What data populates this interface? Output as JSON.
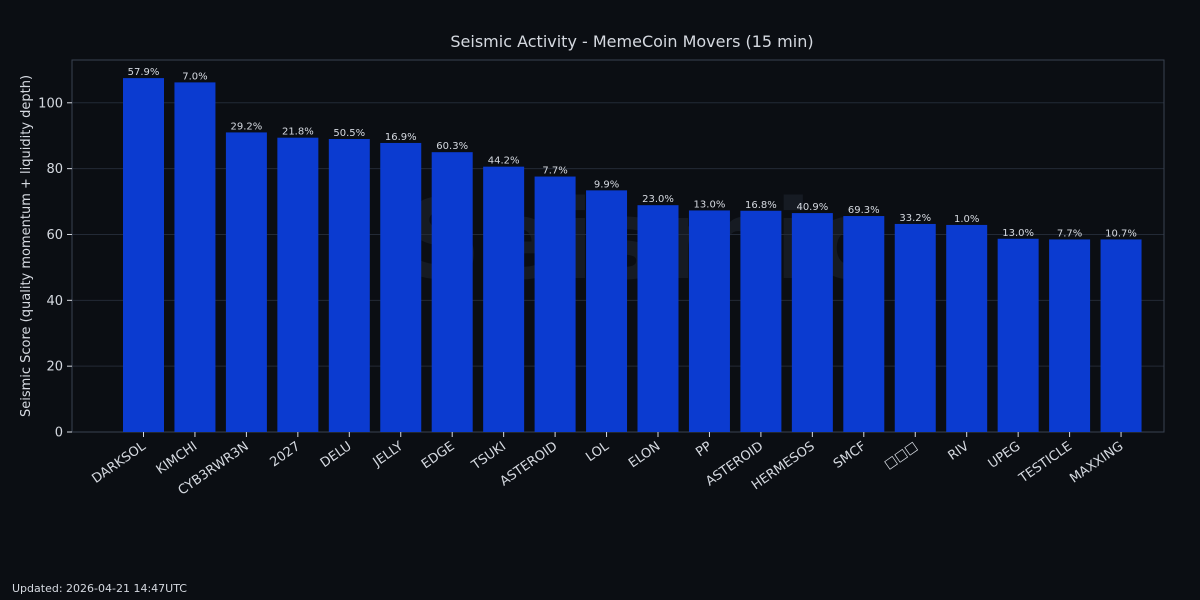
{
  "chart_data": {
    "type": "bar",
    "title": "Seismic Activity - MemeCoin Movers (15 min)",
    "xlabel": "",
    "ylabel": "Seismic Score (quality momentum + liquidity depth)",
    "ylim": [
      0,
      113
    ],
    "yticks": [
      0,
      20,
      40,
      60,
      80,
      100
    ],
    "grid": true,
    "watermark": "Seismic",
    "categories": [
      "DARKSOL",
      "KIMCHI",
      "CYB3RWR3N",
      "2027",
      "DELU",
      "JELLY",
      "EDGE",
      "TSUKI",
      "ASTEROID",
      "LOL",
      "ELON",
      "PP",
      "ASTEROID",
      "HERMESOS",
      "SMCF",
      "□□□",
      "RIV",
      "UPEG",
      "TESTICLE",
      "MAXXING"
    ],
    "values": [
      107.5,
      106.2,
      91.0,
      89.4,
      89.0,
      87.8,
      85.0,
      80.6,
      77.6,
      73.4,
      68.9,
      67.3,
      67.2,
      66.5,
      65.6,
      63.2,
      62.9,
      58.7,
      58.5,
      58.5
    ],
    "labels": [
      "57.9%",
      "7.0%",
      "29.2%",
      "21.8%",
      "50.5%",
      "16.9%",
      "60.3%",
      "44.2%",
      "7.7%",
      "9.9%",
      "23.0%",
      "13.0%",
      "16.8%",
      "40.9%",
      "69.3%",
      "33.2%",
      "1.0%",
      "13.0%",
      "7.7%",
      "10.7%"
    ],
    "colors": {
      "background": "#0b0e13",
      "bar": "#0b3bd0",
      "grid": "#232a36",
      "axis": "#3a4250",
      "text": "#d5d9e0",
      "watermark": "#161b23"
    }
  },
  "footer": {
    "updated": "Updated: 2026-04-21 14:47UTC"
  }
}
